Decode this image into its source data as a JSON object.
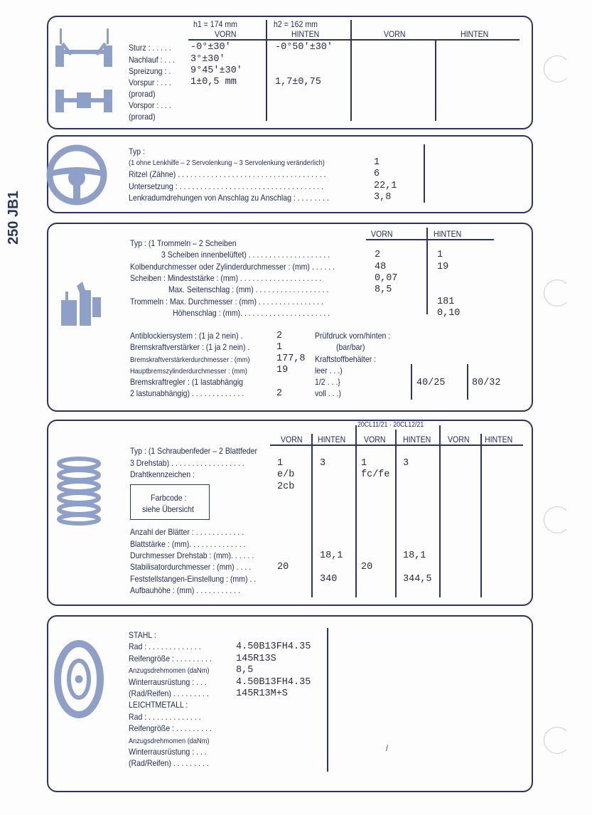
{
  "side_label": "250 JB1",
  "alignment": {
    "h1": "h1 = 174 mm",
    "h2": "h2 = 162 mm",
    "headers": [
      "VORN",
      "HINTEN",
      "VORN",
      "HINTEN"
    ],
    "rows": [
      {
        "label": "Sturz : . . . . .",
        "front": "-0°±30'",
        "rear": "-0°50'±30'"
      },
      {
        "label": "Nachlauf : . . .",
        "front": "3°±30'",
        "rear": ""
      },
      {
        "label": "Spreizung :   .",
        "front": "9°45'±30'",
        "rear": ""
      },
      {
        "label": "Vorspur :  . . .",
        "front": "1±0,5 mm",
        "rear": "1,7±0,75"
      },
      {
        "label": "(prorad)"
      },
      {
        "label": "Vorspor :  . . ."
      },
      {
        "label": "(prorad)"
      }
    ]
  },
  "steering": {
    "rows": [
      {
        "label": "Typ :",
        "value": ""
      },
      {
        "label": "(1 ohne Lenkhilfe  –  2 Servolenkung  –  3 Servolenkung veränderlich)",
        "value": "1"
      },
      {
        "label": "Ritzel (Zähne) . . . . . . . . . . . . . . . . . . . . . . . . . . . . . . . . . . . .",
        "value": "6"
      },
      {
        "label": "Untersetzung : . . . . . . . . . . . . . . . . . . . . . . . . . . . . . . . . . . .",
        "value": "22,1"
      },
      {
        "label": "Lenkradumdrehungen von Anschlag zu Anschlag :  . . . . . . . .",
        "value": "3,8"
      }
    ]
  },
  "brakes": {
    "headers": [
      "VORN",
      "HINTEN"
    ],
    "rows": [
      {
        "label": "Typ : (1 Trommeln  –  2 Scheiben",
        "front": "",
        "rear": ""
      },
      {
        "label": "3 Scheiben innenbelüftet) . . . . . . . . . . . . . . . . . . . .",
        "front": "2",
        "rear": "1"
      },
      {
        "label": "Kolbendurchmesser oder Zylinderdurchmesser : (mm)  . . . . . .",
        "front": "48",
        "rear": "19"
      },
      {
        "label": "Scheiben : Mindeststärke : (mm)  . . . . . . . . . . . . . . . . . . . .",
        "front": "0,07",
        "rear": ""
      },
      {
        "label": "Max. Seitenschlag : (mm) . . . . . . . . . . . . . . . . . .",
        "front": "8,5",
        "rear": ""
      },
      {
        "label": "Trommeln : Max. Durchmesser : (mm)  . . . . . . . . . . . . . . . .",
        "front": "",
        "rear": "181"
      },
      {
        "label": "Höhenschlag : (mm). . . . . . . . . . . . . . . . . . . . . .",
        "front": "",
        "rear": "0,10"
      }
    ],
    "extra": [
      {
        "label": "Antiblockiersystem : (1 ja 2 nein)  .",
        "value": "2"
      },
      {
        "label": "Bremskraftverstärker : (1 ja 2 nein) .",
        "value": "1"
      },
      {
        "label": "Bremskraftverstärkerdurchmesser : (mm)",
        "value": "177,8"
      },
      {
        "label": "Hauptbremszylinderdurchmesser : (mm)",
        "value": "19"
      },
      {
        "label": "Bremskraftregler : (1 lastabhängig",
        "value": ""
      },
      {
        "label": "2 lastunabhängig) . . . . . . . . . . . . .",
        "value": "2"
      }
    ],
    "pressure": {
      "label": "Prüfdruck vorn/hinten :",
      "unit": "(bar/bar)",
      "tank": "Kraftstoffbehälter :",
      "levels": [
        "leer  . . .)",
        "1/2   . . .}",
        "voll  . . .)"
      ],
      "values": [
        "40/25",
        "80/32"
      ]
    }
  },
  "suspension": {
    "group_label": "20CL11/21 · 20CL12/21",
    "headers": [
      "VORN",
      "HINTEN",
      "VORN",
      "HINTEN",
      "VORN",
      "HINTEN"
    ],
    "farbcode": [
      "Farbcode :",
      "siehe Übersicht"
    ],
    "rows": [
      {
        "label": "Typ : (1 Schraubenfeder – 2 Blattfeder",
        "values": [
          "",
          "",
          "",
          ""
        ]
      },
      {
        "label": "3 Drehstab) . . . . . . . . . . . . . . . . . .",
        "values": [
          "1",
          "3",
          "1",
          "3"
        ]
      },
      {
        "label": "Drahtkennzeichen :",
        "values": [
          "e/b",
          "",
          "fc/fe",
          ""
        ]
      },
      {
        "label": "",
        "values": [
          "2cb",
          "",
          "",
          ""
        ]
      },
      {
        "label": "Anzahl der Blätter :  . . . . . . . . . . . .",
        "values": [
          "",
          "",
          "",
          ""
        ]
      },
      {
        "label": "Blattstärke : (mm). . . . . . . . . . . . . .",
        "values": [
          "",
          "",
          "",
          ""
        ]
      },
      {
        "label": "Durchmesser Drehstab : (mm). . . . . .",
        "values": [
          "",
          "18,1",
          "",
          "18,1"
        ]
      },
      {
        "label": "Stabilisatordurchmesser : (mm)  . . . .",
        "values": [
          "20",
          "",
          "20",
          ""
        ]
      },
      {
        "label": "Feststellstangen-Einstellung : (mm) . .",
        "values": [
          "",
          "340",
          "",
          "344,5"
        ]
      },
      {
        "label": "Aufbauhöhe : (mm)  . . . . . . . . . . .",
        "values": [
          "",
          "",
          "",
          ""
        ]
      }
    ]
  },
  "wheels": {
    "rows": [
      {
        "label": "STAHL :",
        "value": ""
      },
      {
        "label": "Rad :  . . . . . . . . . . . . .",
        "value": "4.50B13FH4.35"
      },
      {
        "label": "Reifengröße : . . . . . . . . .",
        "value": "145R13S"
      },
      {
        "label": "Anzugsdrehmomen (daNm)",
        "value": "8,5",
        "small": true
      },
      {
        "label": "Winterrausrüstung :  . . .",
        "value": "4.50B13FH4.35"
      },
      {
        "label": "(Rad/Reifen) . . . . . . . . .",
        "value": "145R13M+S"
      },
      {
        "label": "LEICHTMETALL :",
        "value": ""
      },
      {
        "label": "Rad :  . . . . . . . . . . . . .",
        "value": ""
      },
      {
        "label": "Reifengröße : . . . . . . . . .",
        "value": ""
      },
      {
        "label": "Anzugsdrehmomen (daNm)",
        "value": "",
        "small": true
      },
      {
        "label": "Winterrausrüstung :  . . .",
        "value": ""
      },
      {
        "label": "(Rad/Reifen) . . . . . . . . .",
        "value": ""
      }
    ],
    "mark": "/"
  },
  "colors": {
    "ink": "#2a3560",
    "icon": "#8fa0c8"
  }
}
